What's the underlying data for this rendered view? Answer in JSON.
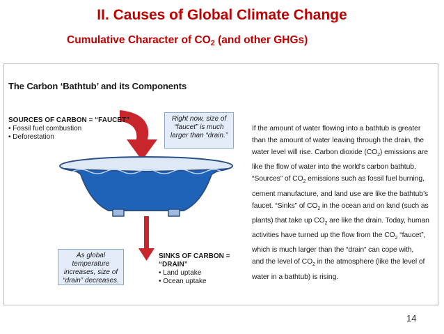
{
  "slide": {
    "title": "II.  Causes of Global Climate Change",
    "subtitle_pre": "Cumulative Character of CO",
    "subtitle_sub": "2",
    "subtitle_post": " (and other GHGs)",
    "page_number": "14"
  },
  "figure": {
    "title": "The Carbon ‘Bathtub’ and its Components",
    "sources": {
      "heading": "SOURCES OF CARBON = “FAUCET”",
      "items": [
        "Fossil fuel combustion",
        "Deforestation"
      ]
    },
    "sinks": {
      "heading": "SINKS OF CARBON = “DRAIN”",
      "items": [
        "Land uptake",
        "Ocean uptake"
      ]
    },
    "callout_top": [
      "Right now, size of",
      "“faucet” is much",
      "larger than “drain.”"
    ],
    "callout_bottom": [
      "As global temperature",
      "increases, size of",
      "“drain” decreases."
    ],
    "paragraph": [
      "If the amount of water flowing into a bathtub is greater",
      "than the amount of water leaving through the drain, the",
      "water level will rise. Carbon dioxide (CO",
      ") emissions are",
      "like the flow of water into the world’s carbon bathtub.",
      "“Sources” of CO",
      " emissions such as fossil fuel burning,",
      "cement manufacture, and land use are like the bathtub’s",
      "faucet. “Sinks” of CO",
      " in the ocean and on land (such as",
      "plants) that take up CO",
      " are like the drain. Today, human",
      "activities have turned up the flow from the CO",
      " “faucet”,",
      "which is much larger than the “drain” can cope with,",
      "and the level of CO",
      " in the atmosphere (like the level of",
      "water in a bathtub) is rising."
    ],
    "sub2": "2"
  },
  "colors": {
    "title_red": "#c00000",
    "arrow_red": "#c8252c",
    "water_blue": "#1f63b8",
    "tub_outline": "#2a4f86"
  }
}
